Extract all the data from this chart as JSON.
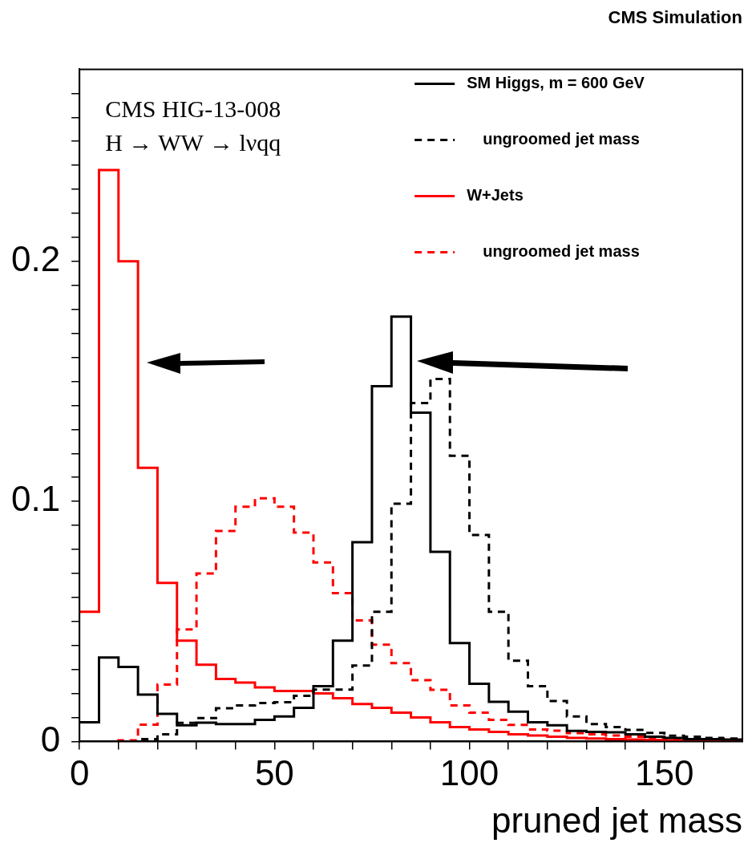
{
  "chart_data": {
    "type": "histogram",
    "title": "CMS Simulation",
    "xlabel": "pruned jet mass",
    "annotations": [
      "CMS HIG-13-008",
      "H → WW → lνqq"
    ],
    "bins": [
      0,
      5,
      10,
      15,
      20,
      25,
      30,
      35,
      40,
      45,
      50,
      55,
      60,
      65,
      70,
      75,
      80,
      85,
      90,
      95,
      100,
      105,
      110,
      115,
      120,
      125,
      130,
      135,
      140,
      145,
      150,
      155,
      160,
      165,
      170
    ],
    "series": [
      {
        "name": "SM Higgs, m = 600 GeV",
        "color": "#000000",
        "line_style": "solid",
        "values": [
          0.008,
          0.035,
          0.031,
          0.0195,
          0.0115,
          0.0067,
          0.0078,
          0.0072,
          0.0072,
          0.009,
          0.0104,
          0.014,
          0.023,
          0.042,
          0.083,
          0.148,
          0.177,
          0.137,
          0.079,
          0.041,
          0.024,
          0.0165,
          0.0124,
          0.008,
          0.0067,
          0.0044,
          0.004,
          0.0038,
          0.003,
          0.002,
          0.0015,
          0.001,
          0.001,
          0.0008
        ]
      },
      {
        "name": "ungroomed jet mass",
        "color": "#000000",
        "line_style": "dashed",
        "values": [
          0,
          0,
          0,
          0.001,
          0.003,
          0.0077,
          0.0097,
          0.0138,
          0.015,
          0.016,
          0.0163,
          0.019,
          0.0216,
          0.0216,
          0.0316,
          0.054,
          0.099,
          0.141,
          0.151,
          0.119,
          0.086,
          0.054,
          0.0336,
          0.023,
          0.0168,
          0.0104,
          0.0072,
          0.006,
          0.0048,
          0.0036,
          0.0024,
          0.002,
          0.0015,
          0.0012
        ]
      },
      {
        "name": "W+Jets",
        "color": "#ff0000",
        "line_style": "solid",
        "values": [
          0.054,
          0.238,
          0.2,
          0.114,
          0.066,
          0.042,
          0.032,
          0.026,
          0.0245,
          0.0225,
          0.021,
          0.021,
          0.02,
          0.018,
          0.0156,
          0.014,
          0.012,
          0.01,
          0.008,
          0.006,
          0.005,
          0.004,
          0.003,
          0.0025,
          0.002,
          0.0015,
          0.0012,
          0.001,
          0.0008,
          0.0006,
          0.0005,
          0.0004,
          0.0003,
          0.0003
        ]
      },
      {
        "name": "ungroomed jet mass",
        "color": "#ff0000",
        "line_style": "dashed",
        "values": [
          0,
          0,
          0.0005,
          0.007,
          0.0237,
          0.0467,
          0.07,
          0.0877,
          0.0978,
          0.1013,
          0.0978,
          0.087,
          0.0746,
          0.0618,
          0.0504,
          0.0403,
          0.0326,
          0.0255,
          0.0215,
          0.015,
          0.012,
          0.009,
          0.0069,
          0.005,
          0.0045,
          0.0035,
          0.003,
          0.0025,
          0.002,
          0.0015,
          0.001,
          0.0008,
          0.0006,
          0.0005
        ]
      }
    ],
    "xlim": [
      0,
      170
    ],
    "xticks": [
      0,
      {
        "value": 10,
        "label": null
      },
      {
        "value": 20,
        "label": null
      },
      {
        "value": 30,
        "label": null
      },
      {
        "value": 40,
        "label": null
      },
      50,
      {
        "value": 60,
        "label": null
      },
      {
        "value": 70,
        "label": null
      },
      {
        "value": 80,
        "label": null
      },
      {
        "value": 90,
        "label": null
      },
      100,
      {
        "value": 110,
        "label": null
      },
      {
        "value": 120,
        "label": null
      },
      {
        "value": 130,
        "label": null
      },
      {
        "value": 140,
        "label": null
      },
      150,
      {
        "value": 160,
        "label": null
      }
    ],
    "ylim": [
      0,
      0.28
    ],
    "yticks": [
      0,
      {
        "value": 0.01,
        "label": null
      },
      {
        "value": 0.02,
        "label": null
      },
      {
        "value": 0.03,
        "label": null
      },
      {
        "value": 0.04,
        "label": null
      },
      {
        "value": 0.05,
        "label": null
      },
      {
        "value": 0.06,
        "label": null
      },
      {
        "value": 0.07,
        "label": null
      },
      {
        "value": 0.08,
        "label": null
      },
      {
        "value": 0.09,
        "label": null
      },
      0.1,
      {
        "value": 0.11,
        "label": null
      },
      {
        "value": 0.12,
        "label": null
      },
      {
        "value": 0.13,
        "label": null
      },
      {
        "value": 0.14,
        "label": null
      },
      {
        "value": 0.15,
        "label": null
      },
      {
        "value": 0.16,
        "label": null
      },
      {
        "value": 0.17,
        "label": null
      },
      {
        "value": 0.18,
        "label": null
      },
      {
        "value": 0.19,
        "label": null
      },
      0.2,
      {
        "value": 0.21,
        "label": null
      },
      {
        "value": 0.22,
        "label": null
      },
      {
        "value": 0.23,
        "label": null
      },
      {
        "value": 0.24,
        "label": null
      },
      {
        "value": 0.25,
        "label": null
      },
      {
        "value": 0.26,
        "label": null
      },
      {
        "value": 0.27,
        "label": null
      }
    ],
    "grid": false,
    "legend": "top right"
  }
}
